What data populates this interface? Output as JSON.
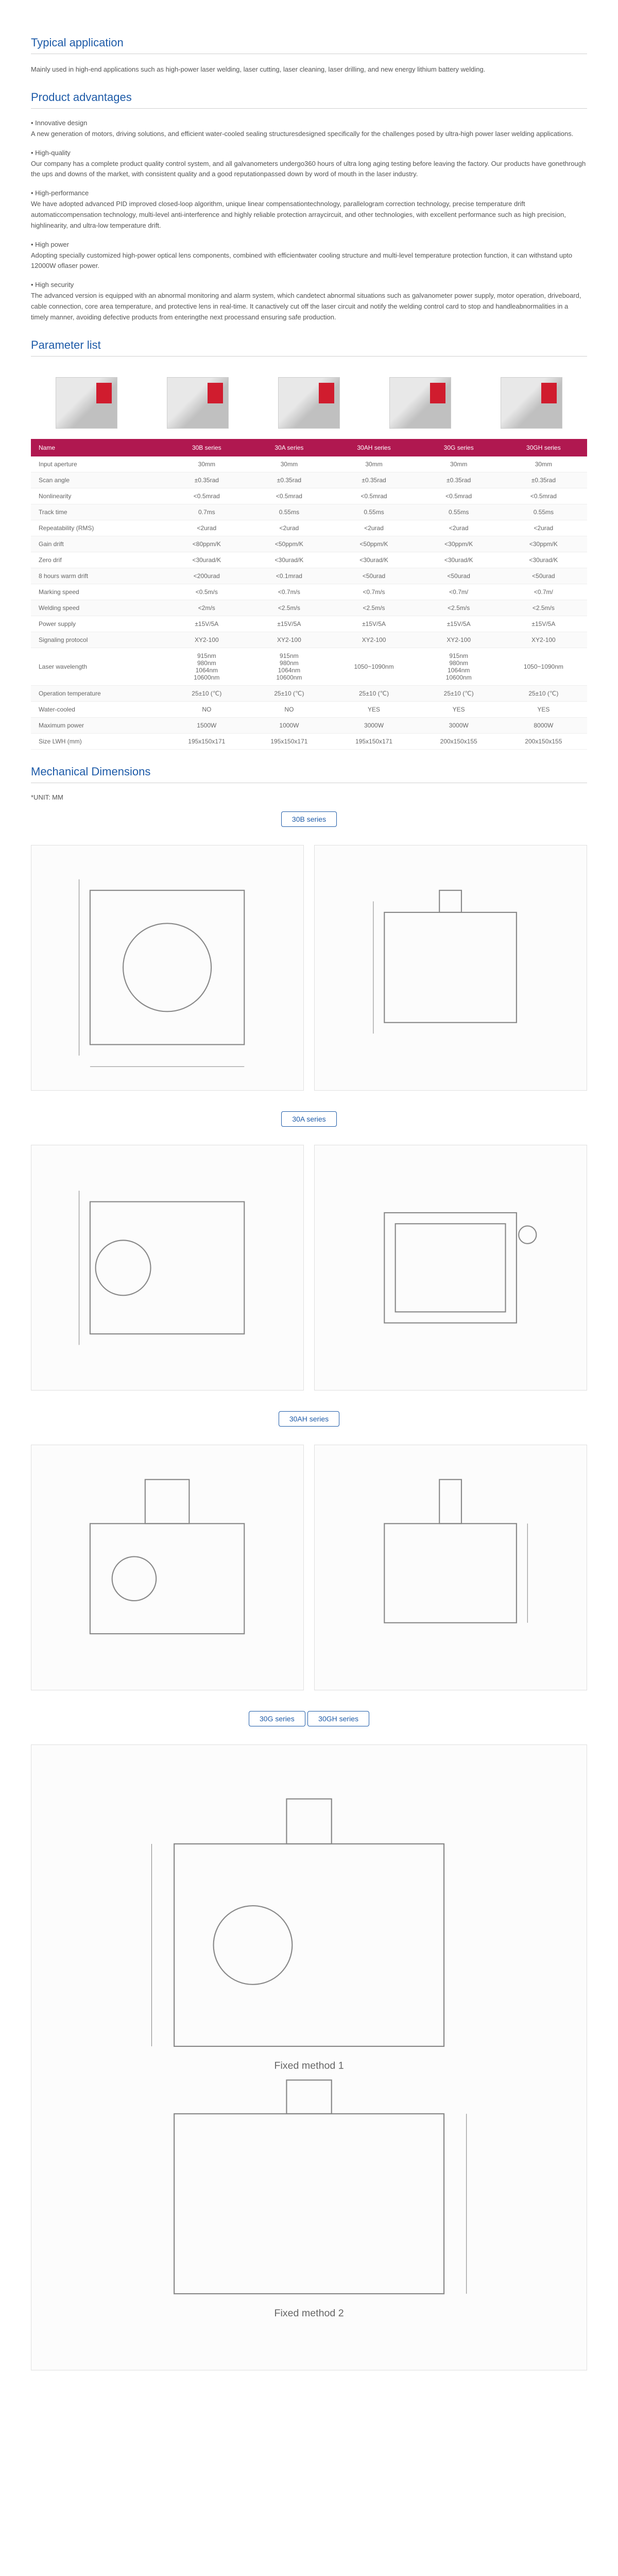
{
  "sections": {
    "typical_app": {
      "title": "Typical application",
      "text": "Mainly used in high-end applications such as high-power laser welding, laser cutting, laser cleaning, laser drilling, and new energy lithium battery welding."
    },
    "advantages": {
      "title": "Product advantages",
      "items": [
        {
          "title": "• Innovative design",
          "desc": "A new generation of motors, driving solutions, and efficient water-cooled sealing structuresdesigned specifically for the challenges posed by ultra-high power laser welding applications."
        },
        {
          "title": "• High-quality",
          "desc": "Our company has a complete product quality control system, and all galvanometers undergo360 hours of ultra long aging testing before leaving the factory. Our products have gonethrough the ups and downs of the market, with consistent quality and a good reputationpassed down by word of mouth in the laser industry."
        },
        {
          "title": "• High-performance",
          "desc": "We have adopted advanced PID improved closed-loop algorithm, unique linear compensationtechnology, parallelogram correction technology, precise temperature drift automaticcompensation technology, multi-level anti-interference and highly reliable protection arraycircuit, and other technologies, with excellent performance such as high precision, highlinearity, and ultra-low temperature drift."
        },
        {
          "title": "• High power",
          "desc": "Adopting specially customized high-power optical lens components, combined with efficientwater cooling structure and multi-level temperature protection function, it can withstand upto 12000W oflaser power."
        },
        {
          "title": "• High security",
          "desc": "The advanced version is equipped with an abnormal monitoring and alarm system, which candetect abnormal situations such as galvanometer power supply, motor operation, driveboard, cable connection, core area temperature, and protective lens in real-time. It canactively cut off the laser circuit and notify the welding control card to stop and handleabnormalities in a timely manner, avoiding defective products from enteringthe next processand ensuring safe production."
        }
      ]
    },
    "params": {
      "title": "Parameter list",
      "headers": [
        "Name",
        "30B series",
        "30A series",
        "30AH series",
        "30G series",
        "30GH series"
      ],
      "rows": [
        [
          "Input aperture",
          "30mm",
          "30mm",
          "30mm",
          "30mm",
          "30mm"
        ],
        [
          "Scan angle",
          "±0.35rad",
          "±0.35rad",
          "±0.35rad",
          "±0.35rad",
          "±0.35rad"
        ],
        [
          "Nonlinearity",
          "<0.5mrad",
          "<0.5mrad",
          "<0.5mrad",
          "<0.5mrad",
          "<0.5mrad"
        ],
        [
          "Track time",
          "0.7ms",
          "0.55ms",
          "0.55ms",
          "0.55ms",
          "0.55ms"
        ],
        [
          "Repeatability (RMS)",
          "<2urad",
          "<2urad",
          "<2urad",
          "<2urad",
          "<2urad"
        ],
        [
          "Gain drift",
          "<80ppm/K",
          "<50ppm/K",
          "<50ppm/K",
          "<30ppm/K",
          "<30ppm/K"
        ],
        [
          "Zero drif",
          "<30urad/K",
          "<30urad/K",
          "<30urad/K",
          "<30urad/K",
          "<30urad/K"
        ],
        [
          "8 hours warm drift",
          "<200urad",
          "<0.1mrad",
          "<50urad",
          "<50urad",
          "<50urad"
        ],
        [
          "Marking speed",
          "<0.5m/s",
          "<0.7m/s",
          "<0.7m/s",
          "<0.7m/",
          "<0.7m/"
        ],
        [
          "Welding speed",
          "<2m/s",
          "<2.5m/s",
          "<2.5m/s",
          "<2.5m/s",
          "<2.5m/s"
        ],
        [
          "Power supply",
          "±15V/5A",
          "±15V/5A",
          "±15V/5A",
          "±15V/5A",
          "±15V/5A"
        ],
        [
          "Signaling protocol",
          "XY2-100",
          "XY2-100",
          "XY2-100",
          "XY2-100",
          "XY2-100"
        ],
        [
          "Laser wavelength",
          "915nm\n980nm\n1064nm\n10600nm",
          "915nm\n980nm\n1064nm\n10600nm",
          "1050~1090nm",
          "915nm\n980nm\n1064nm\n10600nm",
          "1050~1090nm"
        ],
        [
          "Operation temperature",
          "25±10 (℃)",
          "25±10 (℃)",
          "25±10 (℃)",
          "25±10 (℃)",
          "25±10 (℃)"
        ],
        [
          "Water-cooled",
          "NO",
          "NO",
          "YES",
          "YES",
          "YES"
        ],
        [
          "Maximum power",
          "1500W",
          "1000W",
          "3000W",
          "3000W",
          "8000W"
        ],
        [
          "Size LWH (mm)",
          "195x150x171",
          "195x150x171",
          "195x150x171",
          "200x150x155",
          "200x150x155"
        ]
      ]
    },
    "mech": {
      "title": "Mechanical Dimensions",
      "unit": "*UNIT:  MM",
      "series": [
        "30B series",
        "30A series",
        "30AH series",
        "30G series",
        "30GH series"
      ]
    }
  }
}
